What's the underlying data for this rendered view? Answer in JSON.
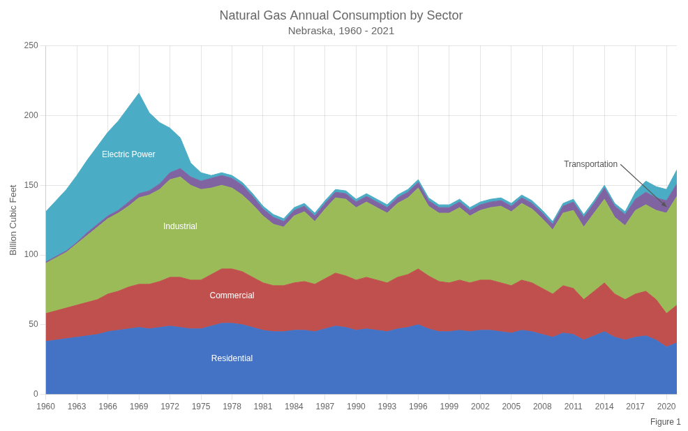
{
  "chart_data": {
    "type": "area",
    "title": "Natural Gas Annual Consumption by Sector",
    "subtitle": "Nebraska, 1960 - 2021",
    "ylabel": "Billion Cubic Feet",
    "annotation": "Figure 1",
    "stacked": true,
    "grid": true,
    "x": [
      1960,
      1961,
      1962,
      1963,
      1964,
      1965,
      1966,
      1967,
      1968,
      1969,
      1970,
      1971,
      1972,
      1973,
      1974,
      1975,
      1976,
      1977,
      1978,
      1979,
      1980,
      1981,
      1982,
      1983,
      1984,
      1985,
      1986,
      1987,
      1988,
      1989,
      1990,
      1991,
      1992,
      1993,
      1994,
      1995,
      1996,
      1997,
      1998,
      1999,
      2000,
      2001,
      2002,
      2003,
      2004,
      2005,
      2006,
      2007,
      2008,
      2009,
      2010,
      2011,
      2012,
      2013,
      2014,
      2015,
      2016,
      2017,
      2018,
      2019,
      2020,
      2021
    ],
    "series": [
      {
        "name": "Residential",
        "color": "#4472C4",
        "values": [
          38,
          39,
          40,
          41,
          42,
          43,
          45,
          46,
          47,
          48,
          47,
          48,
          49,
          48,
          47,
          47,
          49,
          51,
          51,
          50,
          48,
          46,
          45,
          45,
          46,
          46,
          45,
          47,
          49,
          48,
          46,
          47,
          46,
          45,
          47,
          48,
          50,
          47,
          45,
          45,
          46,
          45,
          46,
          46,
          45,
          44,
          46,
          45,
          43,
          41,
          44,
          43,
          39,
          42,
          45,
          41,
          39,
          41,
          42,
          39,
          34,
          37
        ]
      },
      {
        "name": "Commercial",
        "color": "#C0504D",
        "values": [
          20,
          21,
          22,
          23,
          24,
          25,
          27,
          28,
          30,
          31,
          32,
          33,
          35,
          36,
          35,
          35,
          37,
          39,
          39,
          38,
          36,
          34,
          33,
          33,
          34,
          35,
          34,
          36,
          38,
          37,
          36,
          37,
          36,
          35,
          37,
          38,
          40,
          38,
          36,
          35,
          36,
          35,
          36,
          36,
          35,
          34,
          36,
          35,
          33,
          31,
          34,
          33,
          29,
          32,
          35,
          31,
          29,
          31,
          32,
          29,
          24,
          27
        ]
      },
      {
        "name": "Industrial",
        "color": "#9BBB59",
        "values": [
          36,
          38,
          40,
          44,
          48,
          52,
          54,
          56,
          58,
          62,
          64,
          66,
          70,
          72,
          68,
          65,
          62,
          60,
          58,
          55,
          52,
          48,
          44,
          42,
          48,
          50,
          45,
          50,
          54,
          55,
          52,
          54,
          52,
          50,
          53,
          55,
          58,
          50,
          49,
          50,
          52,
          48,
          50,
          52,
          55,
          53,
          55,
          53,
          50,
          46,
          52,
          56,
          52,
          56,
          60,
          55,
          53,
          60,
          62,
          64,
          72,
          78
        ]
      },
      {
        "name": "Transportation",
        "color": "#8064A2",
        "values": [
          1,
          1,
          1,
          1,
          2,
          2,
          2,
          2,
          3,
          3,
          3,
          4,
          5,
          6,
          6,
          6,
          7,
          7,
          7,
          7,
          6,
          5,
          5,
          4,
          4,
          4,
          4,
          4,
          4,
          4,
          4,
          4,
          4,
          4,
          4,
          4,
          4,
          4,
          4,
          4,
          4,
          4,
          4,
          4,
          4,
          4,
          4,
          4,
          4,
          4,
          5,
          6,
          7,
          7,
          8,
          8,
          8,
          8,
          9,
          9,
          9,
          9
        ]
      },
      {
        "name": "Electric Power",
        "color": "#4BACC6",
        "values": [
          36,
          40,
          44,
          48,
          52,
          56,
          60,
          64,
          68,
          72,
          56,
          44,
          32,
          22,
          10,
          6,
          2,
          2,
          2,
          2,
          2,
          2,
          2,
          2,
          2,
          2,
          2,
          2,
          2,
          2,
          2,
          2,
          2,
          2,
          2,
          2,
          2,
          2,
          2,
          2,
          2,
          2,
          2,
          2,
          2,
          2,
          2,
          2,
          2,
          2,
          2,
          2,
          2,
          2,
          2,
          2,
          2,
          5,
          8,
          8,
          8,
          10
        ]
      }
    ],
    "xlim": [
      1960,
      2021
    ],
    "xticks": [
      1960,
      1963,
      1966,
      1969,
      1972,
      1975,
      1978,
      1981,
      1984,
      1987,
      1990,
      1993,
      1996,
      1999,
      2002,
      2005,
      2008,
      2011,
      2014,
      2017,
      2020
    ],
    "ylim": [
      0,
      250
    ],
    "yticks": [
      0,
      50,
      100,
      150,
      200,
      250
    ]
  }
}
